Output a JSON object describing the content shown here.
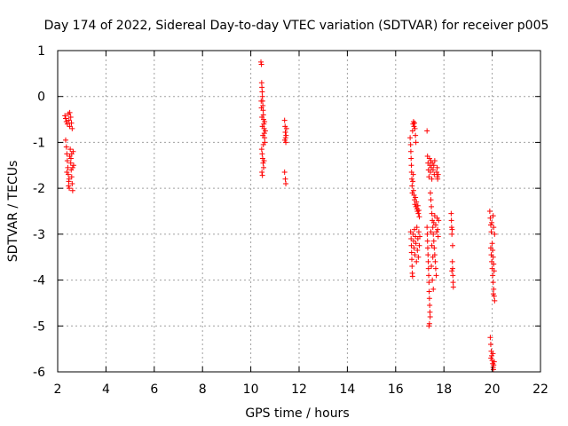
{
  "chart_data": {
    "type": "scatter",
    "title": "Day 174 of 2022, Sidereal Day-to-day VTEC variation (SDTVAR) for receiver p005",
    "xlabel": "GPS time / hours",
    "ylabel": "SDTVAR / TECUs",
    "xlim": [
      2,
      22
    ],
    "ylim": [
      -6,
      1
    ],
    "x_ticks": [
      2,
      4,
      6,
      8,
      10,
      12,
      14,
      16,
      18,
      20,
      22
    ],
    "y_ticks": [
      1,
      0,
      -1,
      -2,
      -3,
      -4,
      -5,
      -6
    ],
    "x_tick_labels": [
      "2",
      "4",
      "6",
      "8",
      "10",
      "12",
      "14",
      "16",
      "18",
      "20",
      "22"
    ],
    "y_tick_labels": [
      "1",
      "0",
      "-1",
      "-2",
      "-3",
      "-4",
      "-5",
      "-6"
    ],
    "grid": true,
    "marker": "plus",
    "color": "#ff0000",
    "series": [
      {
        "name": "SDTVAR",
        "points": [
          [
            2.3,
            -0.42
          ],
          [
            2.33,
            -0.48
          ],
          [
            2.36,
            -0.55
          ],
          [
            2.4,
            -0.6
          ],
          [
            2.44,
            -0.38
          ],
          [
            2.47,
            -0.52
          ],
          [
            2.5,
            -0.65
          ],
          [
            2.54,
            -0.45
          ],
          [
            2.57,
            -0.58
          ],
          [
            2.6,
            -0.7
          ],
          [
            2.5,
            -0.35
          ],
          [
            2.33,
            -0.95
          ],
          [
            2.36,
            -1.1
          ],
          [
            2.38,
            -1.25
          ],
          [
            2.4,
            -1.4
          ],
          [
            2.42,
            -1.55
          ],
          [
            2.44,
            -1.7
          ],
          [
            2.46,
            -1.85
          ],
          [
            2.48,
            -2.0
          ],
          [
            2.5,
            -1.3
          ],
          [
            2.52,
            -1.15
          ],
          [
            2.54,
            -1.45
          ],
          [
            2.56,
            -1.6
          ],
          [
            2.58,
            -1.75
          ],
          [
            2.6,
            -1.9
          ],
          [
            2.62,
            -2.05
          ],
          [
            2.64,
            -1.2
          ],
          [
            2.66,
            -1.5
          ],
          [
            2.38,
            -1.65
          ],
          [
            2.47,
            -1.8
          ],
          [
            2.55,
            -1.35
          ],
          [
            2.62,
            -1.55
          ],
          [
            2.45,
            -1.95
          ],
          [
            2.58,
            -1.25
          ],
          [
            10.42,
            0.75
          ],
          [
            10.44,
            0.7
          ],
          [
            10.45,
            0.3
          ],
          [
            10.46,
            0.2
          ],
          [
            10.47,
            0.1
          ],
          [
            10.48,
            0.0
          ],
          [
            10.49,
            -0.1
          ],
          [
            10.5,
            -0.2
          ],
          [
            10.51,
            -0.3
          ],
          [
            10.52,
            -0.4
          ],
          [
            10.53,
            -0.5
          ],
          [
            10.54,
            -0.6
          ],
          [
            10.55,
            -0.7
          ],
          [
            10.56,
            -0.8
          ],
          [
            10.57,
            -0.9
          ],
          [
            10.58,
            -1.0
          ],
          [
            10.44,
            -0.25
          ],
          [
            10.46,
            -0.45
          ],
          [
            10.48,
            -0.65
          ],
          [
            10.5,
            -0.85
          ],
          [
            10.52,
            -1.05
          ],
          [
            10.45,
            -1.15
          ],
          [
            10.47,
            -1.25
          ],
          [
            10.49,
            -1.35
          ],
          [
            10.51,
            -1.45
          ],
          [
            10.53,
            -1.55
          ],
          [
            10.46,
            -1.65
          ],
          [
            10.48,
            -1.72
          ],
          [
            10.55,
            -1.4
          ],
          [
            10.57,
            -0.55
          ],
          [
            10.43,
            -0.1
          ],
          [
            10.6,
            -0.75
          ],
          [
            11.4,
            -0.52
          ],
          [
            11.42,
            -0.65
          ],
          [
            11.43,
            -0.78
          ],
          [
            11.44,
            -0.9
          ],
          [
            11.45,
            -1.0
          ],
          [
            11.46,
            -0.85
          ],
          [
            11.41,
            -0.95
          ],
          [
            11.48,
            -0.7
          ],
          [
            11.4,
            -1.65
          ],
          [
            11.43,
            -1.8
          ],
          [
            11.45,
            -1.9
          ],
          [
            16.6,
            -0.9
          ],
          [
            16.62,
            -1.05
          ],
          [
            16.63,
            -1.2
          ],
          [
            16.64,
            -1.35
          ],
          [
            16.65,
            -1.5
          ],
          [
            16.66,
            -1.65
          ],
          [
            16.67,
            -1.8
          ],
          [
            16.68,
            -1.95
          ],
          [
            16.69,
            -2.1
          ],
          [
            16.7,
            -0.75
          ],
          [
            16.72,
            -0.6
          ],
          [
            16.74,
            -0.55
          ],
          [
            16.76,
            -0.65
          ],
          [
            16.78,
            -0.58
          ],
          [
            16.8,
            -0.7
          ],
          [
            16.82,
            -0.85
          ],
          [
            16.84,
            -1.0
          ],
          [
            16.74,
            -2.05
          ],
          [
            16.76,
            -2.15
          ],
          [
            16.78,
            -2.25
          ],
          [
            16.8,
            -2.35
          ],
          [
            16.82,
            -2.2
          ],
          [
            16.84,
            -2.4
          ],
          [
            16.86,
            -2.3
          ],
          [
            16.88,
            -2.45
          ],
          [
            16.9,
            -2.5
          ],
          [
            16.92,
            -2.38
          ],
          [
            16.94,
            -2.55
          ],
          [
            16.96,
            -2.48
          ],
          [
            16.98,
            -2.62
          ],
          [
            16.71,
            -1.85
          ],
          [
            16.73,
            -1.7
          ],
          [
            16.62,
            -2.95
          ],
          [
            16.64,
            -3.1
          ],
          [
            16.65,
            -3.25
          ],
          [
            16.66,
            -3.4
          ],
          [
            16.67,
            -3.55
          ],
          [
            16.68,
            -3.7
          ],
          [
            16.69,
            -3.85
          ],
          [
            16.7,
            -3.92
          ],
          [
            16.72,
            -3.0
          ],
          [
            16.74,
            -3.15
          ],
          [
            16.76,
            -3.3
          ],
          [
            16.78,
            -2.9
          ],
          [
            16.8,
            -3.45
          ],
          [
            16.82,
            -3.05
          ],
          [
            16.84,
            -3.2
          ],
          [
            16.86,
            -3.6
          ],
          [
            16.88,
            -2.85
          ],
          [
            16.9,
            -3.35
          ],
          [
            16.92,
            -3.1
          ],
          [
            16.94,
            -3.5
          ],
          [
            16.96,
            -2.95
          ],
          [
            16.98,
            -3.25
          ],
          [
            17.0,
            -3.05
          ],
          [
            17.3,
            -0.75
          ],
          [
            17.32,
            -1.3
          ],
          [
            17.34,
            -1.45
          ],
          [
            17.36,
            -1.6
          ],
          [
            17.38,
            -1.75
          ],
          [
            17.4,
            -1.35
          ],
          [
            17.42,
            -1.5
          ],
          [
            17.44,
            -1.65
          ],
          [
            17.46,
            -1.4
          ],
          [
            17.48,
            -1.55
          ],
          [
            17.5,
            -1.8
          ],
          [
            17.52,
            -1.45
          ],
          [
            17.55,
            -1.6
          ],
          [
            17.58,
            -1.5
          ],
          [
            17.6,
            -1.7
          ],
          [
            17.62,
            -1.4
          ],
          [
            17.3,
            -2.85
          ],
          [
            17.31,
            -3.0
          ],
          [
            17.32,
            -3.15
          ],
          [
            17.33,
            -3.3
          ],
          [
            17.34,
            -3.45
          ],
          [
            17.35,
            -3.6
          ],
          [
            17.36,
            -3.75
          ],
          [
            17.37,
            -3.9
          ],
          [
            17.38,
            -4.05
          ],
          [
            17.39,
            -4.25
          ],
          [
            17.4,
            -4.4
          ],
          [
            17.41,
            -4.55
          ],
          [
            17.42,
            -4.7
          ],
          [
            17.43,
            -4.8
          ],
          [
            17.38,
            -5.0
          ],
          [
            17.4,
            -4.95
          ],
          [
            17.44,
            -2.1
          ],
          [
            17.46,
            -2.25
          ],
          [
            17.48,
            -2.4
          ],
          [
            17.5,
            -2.55
          ],
          [
            17.52,
            -2.7
          ],
          [
            17.54,
            -2.85
          ],
          [
            17.56,
            -3.0
          ],
          [
            17.58,
            -3.15
          ],
          [
            17.6,
            -3.3
          ],
          [
            17.62,
            -3.45
          ],
          [
            17.64,
            -3.6
          ],
          [
            17.66,
            -3.75
          ],
          [
            17.68,
            -3.9
          ],
          [
            17.46,
            -2.95
          ],
          [
            17.5,
            -3.25
          ],
          [
            17.54,
            -3.5
          ],
          [
            17.58,
            -2.75
          ],
          [
            17.62,
            -2.6
          ],
          [
            17.66,
            -2.8
          ],
          [
            17.7,
            -2.95
          ],
          [
            17.72,
            -2.65
          ],
          [
            17.74,
            -2.9
          ],
          [
            17.76,
            -3.05
          ],
          [
            17.78,
            -2.7
          ],
          [
            17.48,
            -3.7
          ],
          [
            17.52,
            -4.0
          ],
          [
            17.56,
            -4.2
          ],
          [
            17.7,
            -1.65
          ],
          [
            17.73,
            -1.75
          ],
          [
            17.76,
            -1.7
          ],
          [
            17.72,
            -1.55
          ],
          [
            17.74,
            -1.8
          ],
          [
            18.3,
            -2.55
          ],
          [
            18.31,
            -2.7
          ],
          [
            18.32,
            -2.85
          ],
          [
            18.33,
            -3.0
          ],
          [
            18.34,
            -2.9
          ],
          [
            18.35,
            -3.6
          ],
          [
            18.36,
            -3.75
          ],
          [
            18.37,
            -3.9
          ],
          [
            18.38,
            -4.05
          ],
          [
            18.39,
            -4.15
          ],
          [
            18.33,
            -3.8
          ],
          [
            18.36,
            -3.25
          ],
          [
            19.9,
            -2.5
          ],
          [
            19.92,
            -2.65
          ],
          [
            19.94,
            -2.8
          ],
          [
            19.96,
            -2.95
          ],
          [
            19.98,
            -2.75
          ],
          [
            20.0,
            -3.2
          ],
          [
            20.02,
            -3.35
          ],
          [
            20.04,
            -3.5
          ],
          [
            20.06,
            -3.65
          ],
          [
            20.08,
            -3.8
          ],
          [
            19.96,
            -3.45
          ],
          [
            19.98,
            -3.6
          ],
          [
            20.0,
            -3.75
          ],
          [
            20.02,
            -3.9
          ],
          [
            20.04,
            -4.05
          ],
          [
            20.06,
            -4.2
          ],
          [
            20.08,
            -4.35
          ],
          [
            20.1,
            -4.45
          ],
          [
            20.04,
            -2.6
          ],
          [
            20.06,
            -2.85
          ],
          [
            20.1,
            -3.0
          ],
          [
            20.05,
            -4.3
          ],
          [
            19.94,
            -3.3
          ],
          [
            19.92,
            -5.25
          ],
          [
            19.94,
            -5.4
          ],
          [
            19.96,
            -5.55
          ],
          [
            19.98,
            -5.65
          ],
          [
            20.0,
            -5.75
          ],
          [
            20.02,
            -5.82
          ],
          [
            20.04,
            -5.9
          ],
          [
            20.06,
            -5.85
          ],
          [
            20.08,
            -5.78
          ],
          [
            19.95,
            -5.7
          ],
          [
            20.03,
            -5.6
          ],
          [
            20.05,
            -5.95
          ]
        ]
      }
    ]
  }
}
